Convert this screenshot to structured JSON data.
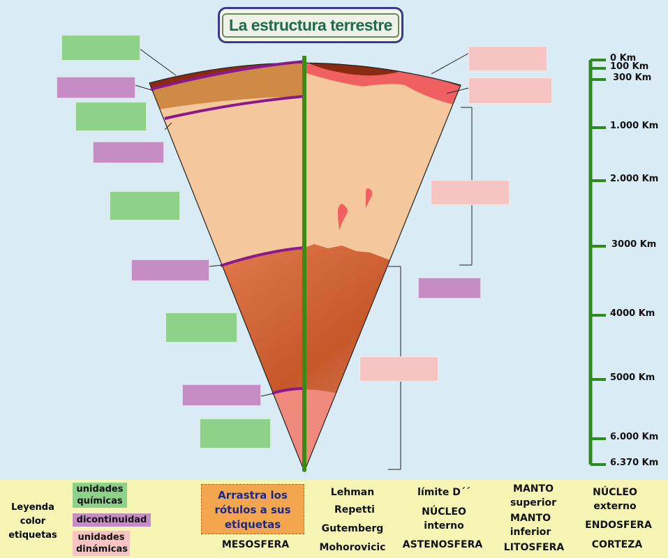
{
  "title": "La estructura terrestre",
  "scale": {
    "ticks": [
      {
        "label": "0 Km",
        "depth": 0
      },
      {
        "label": "100 Km",
        "depth": 100
      },
      {
        "label": "300 Km",
        "depth": 300
      },
      {
        "label": "1.000 Km",
        "depth": 1000
      },
      {
        "label": "2.000 Km",
        "depth": 2000
      },
      {
        "label": "3000 Km",
        "depth": 3000
      },
      {
        "label": "4000 Km",
        "depth": 4000
      },
      {
        "label": "5000 Km",
        "depth": 5000
      },
      {
        "label": "6.000 Km",
        "depth": 6000
      },
      {
        "label": "6.370 Km",
        "depth": 6370
      }
    ],
    "color": "#2f8a1e"
  },
  "legend": {
    "title_lines": [
      "Leyenda",
      "color",
      "etiquetas"
    ],
    "chemical": "unidades químicas",
    "discontinuity": "dicontinuidad",
    "dynamic": "unidades dinámicas"
  },
  "instruction": "Arrastra los rótulos a sus etiquetas",
  "tiles": {
    "mesosfera": "MESOSFERA",
    "lehman": "Lehman",
    "repetti": "Repetti",
    "gutemberg": "Gutemberg",
    "mohorovicic": "Mohorovicic",
    "limite_d": "límite D´´",
    "nucleo_interno_1": "NÚCLEO",
    "nucleo_interno_2": "interno",
    "astenosfera": "ASTENOSFERA",
    "manto_superior_1": "MANTO",
    "manto_superior_2": "superior",
    "manto_inferior_1": "MANTO",
    "manto_inferior_2": "inferior",
    "litosfera": "LITOSFERA",
    "nucleo_externo_1": "NÚCLEO",
    "nucleo_externo_2": "externo",
    "endosfera": "ENDOSFERA",
    "corteza": "CORTEZA"
  },
  "colors": {
    "crust": "#8b2a10",
    "upper_mantle": "#cf8a46",
    "lower_mantle": "#f4c89c",
    "outer_core": "#c9592a",
    "inner_core": "#f08a7c",
    "asthenosphere": "#f06060",
    "discontinuity": "#8a1a8c",
    "label_green": "#8ed28a",
    "label_purple": "#c68cc4",
    "label_pink": "#f6c4c2",
    "instruction_bg": "#f4a64e"
  }
}
